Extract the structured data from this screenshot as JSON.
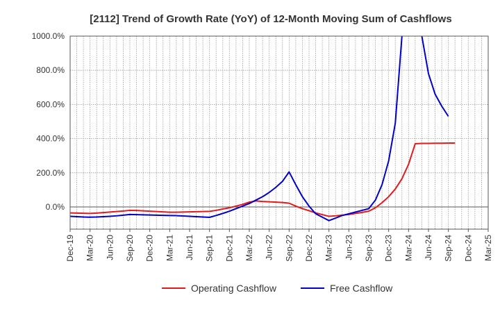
{
  "chart_data": {
    "type": "line",
    "title": "[2112]  Trend of Growth Rate (YoY) of 12-Month Moving Sum of Cashflows",
    "xlabel": "",
    "ylabel": "",
    "ylim": [
      -130,
      1000
    ],
    "yticks": [
      0,
      200,
      400,
      600,
      800,
      1000
    ],
    "ytick_labels": [
      "0.0%",
      "200.0%",
      "400.0%",
      "600.0%",
      "800.0%",
      "1000.0%"
    ],
    "x_ticks": [
      "Dec-19",
      "Mar-20",
      "Jun-20",
      "Sep-20",
      "Dec-20",
      "Mar-21",
      "Jun-21",
      "Sep-21",
      "Dec-21",
      "Mar-22",
      "Jun-22",
      "Sep-22",
      "Dec-22",
      "Mar-23",
      "Jun-23",
      "Sep-23",
      "Dec-23",
      "Mar-24",
      "Jun-24",
      "Sep-24",
      "Dec-24",
      "Mar-25"
    ],
    "x_months": [
      "Dec-19",
      "Jan-20",
      "Feb-20",
      "Mar-20",
      "Apr-20",
      "May-20",
      "Jun-20",
      "Jul-20",
      "Aug-20",
      "Sep-20",
      "Oct-20",
      "Nov-20",
      "Dec-20",
      "Jan-21",
      "Feb-21",
      "Mar-21",
      "Apr-21",
      "May-21",
      "Jun-21",
      "Jul-21",
      "Aug-21",
      "Sep-21",
      "Oct-21",
      "Nov-21",
      "Dec-21",
      "Jan-22",
      "Feb-22",
      "Mar-22",
      "Apr-22",
      "May-22",
      "Jun-22",
      "Jul-22",
      "Aug-22",
      "Sep-22",
      "Oct-22",
      "Nov-22",
      "Dec-22",
      "Jan-23",
      "Feb-23",
      "Mar-23",
      "Apr-23",
      "May-23",
      "Jun-23",
      "Jul-23",
      "Aug-23",
      "Sep-23",
      "Oct-23",
      "Nov-23",
      "Dec-23",
      "Jan-24",
      "Feb-24",
      "Mar-24",
      "Apr-24",
      "May-24",
      "Jun-24",
      "Jul-24",
      "Aug-24",
      "Sep-24",
      "Oct-24",
      "Nov-24",
      "Dec-24",
      "Jan-25",
      "Feb-25",
      "Mar-25"
    ],
    "grid": true,
    "legend_position": "bottom-center",
    "series": [
      {
        "name": "Operating Cashflow",
        "color": "#e31a1c",
        "values": [
          -35,
          -36,
          -37,
          -38,
          -36,
          -33,
          -30,
          -27,
          -24,
          -20,
          -21,
          -23,
          -25,
          -27,
          -29,
          -31,
          -31,
          -30,
          -29,
          -28,
          -27,
          -26,
          -20,
          -12,
          -5,
          5,
          15,
          28,
          35,
          32,
          30,
          28,
          26,
          22,
          5,
          -10,
          -22,
          -35,
          -45,
          -55,
          -52,
          -48,
          -44,
          -38,
          -32,
          -25,
          -5,
          25,
          60,
          105,
          165,
          250,
          370,
          372,
          372,
          373,
          373,
          374,
          374,
          null,
          null,
          null,
          null,
          null
        ]
      },
      {
        "name": "Free Cashflow",
        "color": "#0000cc",
        "values": [
          -55,
          -57,
          -59,
          -60,
          -59,
          -57,
          -55,
          -52,
          -48,
          -44,
          -45,
          -46,
          -47,
          -48,
          -49,
          -50,
          -51,
          -53,
          -55,
          -57,
          -59,
          -61,
          -50,
          -38,
          -25,
          -10,
          5,
          20,
          40,
          60,
          85,
          115,
          150,
          205,
          130,
          60,
          5,
          -40,
          -60,
          -80,
          -65,
          -50,
          -40,
          -30,
          -20,
          -10,
          40,
          130,
          270,
          490,
          1000,
          1400,
          1400,
          1000,
          780,
          660,
          590,
          530,
          null,
          null,
          null,
          null,
          null,
          null
        ]
      }
    ]
  }
}
